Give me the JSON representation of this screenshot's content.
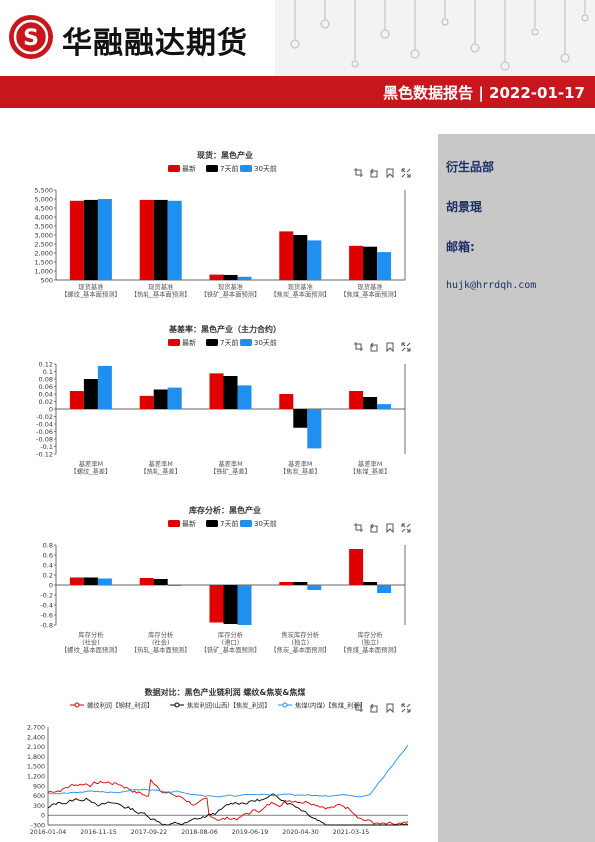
{
  "brand": {
    "name": "华融融达期货",
    "logo_glyph": "S"
  },
  "banner": {
    "title": "黑色数据报告 | 2022-01-17"
  },
  "sidebar": {
    "category": "衍生品部",
    "author": "胡景琨",
    "email_label": "邮箱:",
    "email": "hujk@hrrdqh.com"
  },
  "legend3": [
    "最新",
    "7天前",
    "30天前"
  ],
  "colors": {
    "latest": "#e00000",
    "d7": "#000000",
    "d30": "#1f8ff0",
    "red": "#c8161d"
  },
  "toolbar_icons": [
    "data-zoom-icon",
    "zoom-reset-icon",
    "save-icon",
    "fullscreen-icon"
  ],
  "chart_data": [
    {
      "type": "bar",
      "title": "现货：黑色产业",
      "categories": [
        [
          "现货基准",
          "【螺纹_基本面预测】"
        ],
        [
          "现货基准",
          "【热轧_基本面预测】"
        ],
        [
          "现货基准",
          "【铁矿_基本面预测】"
        ],
        [
          "现货基准",
          "【焦炭_基本面预测】"
        ],
        [
          "现货基准",
          "【焦煤_基本面预测】"
        ]
      ],
      "series": [
        {
          "name": "最新",
          "values": [
            4900,
            4950,
            800,
            3200,
            2400
          ]
        },
        {
          "name": "7天前",
          "values": [
            4950,
            4950,
            780,
            3000,
            2350
          ]
        },
        {
          "name": "30天前",
          "values": [
            5000,
            4900,
            680,
            2700,
            2050
          ]
        }
      ],
      "ylim": [
        500,
        5500
      ],
      "yticks": [
        "5,500",
        "5,000",
        "4,500",
        "4,000",
        "3,500",
        "3,000",
        "2,500",
        "2,000",
        "1,500",
        "1,000",
        "500"
      ]
    },
    {
      "type": "bar",
      "title": "基差率：黑色产业（主力合约）",
      "categories": [
        [
          "基差率M",
          "【螺纹_基差】"
        ],
        [
          "基差率M",
          "【热轧_基差】"
        ],
        [
          "基差率M",
          "【铁矿_基差】"
        ],
        [
          "基差率M",
          "【焦炭_基差】"
        ],
        [
          "基差率M",
          "【焦煤_基差】"
        ]
      ],
      "series": [
        {
          "name": "最新",
          "values": [
            0.048,
            0.035,
            0.095,
            0.04,
            0.048
          ]
        },
        {
          "name": "7天前",
          "values": [
            0.08,
            0.052,
            0.088,
            -0.05,
            0.032
          ]
        },
        {
          "name": "30天前",
          "values": [
            0.115,
            0.057,
            0.063,
            -0.105,
            0.013
          ]
        }
      ],
      "ylim": [
        -0.12,
        0.12
      ],
      "yticks": [
        "0.12",
        "0.1",
        "0.08",
        "0.06",
        "0.04",
        "0.02",
        "0",
        "-0.02",
        "-0.04",
        "-0.06",
        "-0.08",
        "-0.1",
        "-0.12"
      ]
    },
    {
      "type": "bar",
      "title": "库存分析：黑色产业",
      "categories": [
        [
          "库存分析",
          "(社会)",
          "【螺纹_基本面预测】"
        ],
        [
          "库存分析",
          "(社会)",
          "【热轧_基本面预测】"
        ],
        [
          "库存分析",
          "(港口)",
          "【铁矿_基本面预测】"
        ],
        [
          "焦炭库存分析",
          "(独立)",
          "【焦炭_基本面预测】"
        ],
        [
          "库存分析",
          "(独立)",
          "【焦煤_基本面预测】"
        ]
      ],
      "series": [
        {
          "name": "最新",
          "values": [
            0.15,
            0.14,
            -0.75,
            0.06,
            0.72
          ]
        },
        {
          "name": "7天前",
          "values": [
            0.15,
            0.12,
            -0.78,
            0.06,
            0.06
          ]
        },
        {
          "name": "30天前",
          "values": [
            0.13,
            -0.02,
            -0.8,
            -0.1,
            -0.16
          ]
        }
      ],
      "ylim": [
        -0.8,
        0.8
      ],
      "yticks": [
        "0.8",
        "0.6",
        "0.4",
        "0.2",
        "0",
        "-0.2",
        "-0.4",
        "-0.6",
        "-0.8"
      ]
    },
    {
      "type": "line",
      "title": "数据对比：黑色产业链利润 螺纹&焦炭&焦煤",
      "series_names": [
        "螺纹利润【钢材_利润】",
        "焦炭利润(山西)【焦炭_利润】",
        "焦煤(内煤)【焦煤_利润】"
      ],
      "xticks": [
        "2016-01-04",
        "2016-11-15",
        "2017-09-22",
        "2018-08-06",
        "2019-06-19",
        "2020-04-30",
        "2021-03-15"
      ],
      "yticks": [
        "2,700",
        "2,400",
        "2,100",
        "1,800",
        "1,500",
        "1,200",
        "900",
        "600",
        "300",
        "0",
        "-300"
      ],
      "ylim": [
        -300,
        2700
      ]
    }
  ]
}
